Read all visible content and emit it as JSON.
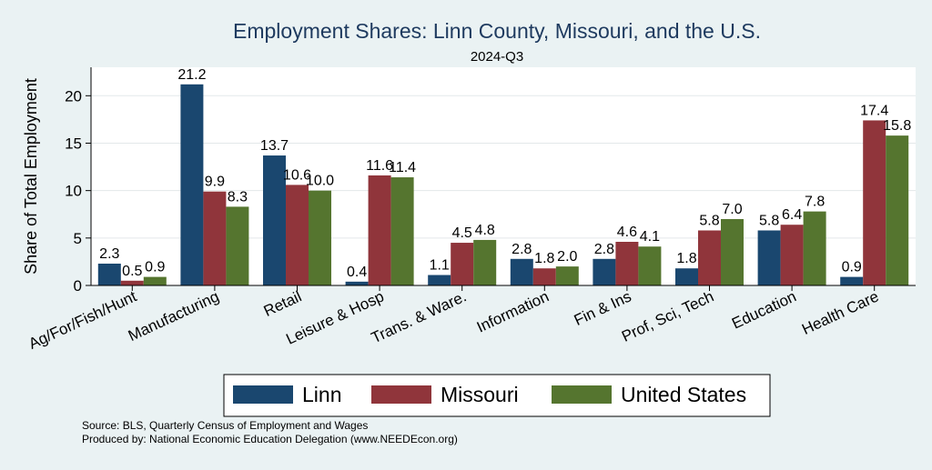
{
  "chart_data": {
    "type": "bar",
    "title": "Employment Shares: Linn County, Missouri, and the U.S.",
    "subtitle": "2024-Q3",
    "xlabel": "",
    "ylabel": "Share of Total Employment",
    "ylim": [
      0,
      23
    ],
    "yticks": [
      0,
      5,
      10,
      15,
      20
    ],
    "grid": true,
    "legend_position": "bottom",
    "categories": [
      "Ag/For/Fish/Hunt",
      "Manufacturing",
      "Retail",
      "Leisure & Hosp",
      "Trans. & Ware.",
      "Information",
      "Fin & Ins",
      "Prof, Sci, Tech",
      "Education",
      "Health Care"
    ],
    "series": [
      {
        "name": "Linn",
        "color": "#1a476f",
        "values": [
          2.3,
          21.2,
          13.7,
          0.4,
          1.1,
          2.8,
          2.8,
          1.8,
          5.8,
          0.9
        ]
      },
      {
        "name": "Missouri",
        "color": "#90353b",
        "values": [
          0.5,
          9.9,
          10.6,
          11.6,
          4.5,
          1.8,
          4.6,
          5.8,
          6.4,
          17.4
        ]
      },
      {
        "name": "United States",
        "color": "#55752f",
        "values": [
          0.9,
          8.3,
          10.0,
          11.4,
          4.8,
          2.0,
          4.1,
          7.0,
          7.8,
          15.8
        ]
      }
    ],
    "notes": [
      "Source: BLS, Quarterly Census of Employment and Wages",
      "Produced by: National Economic Education Delegation (www.NEEDEcon.org)"
    ]
  }
}
